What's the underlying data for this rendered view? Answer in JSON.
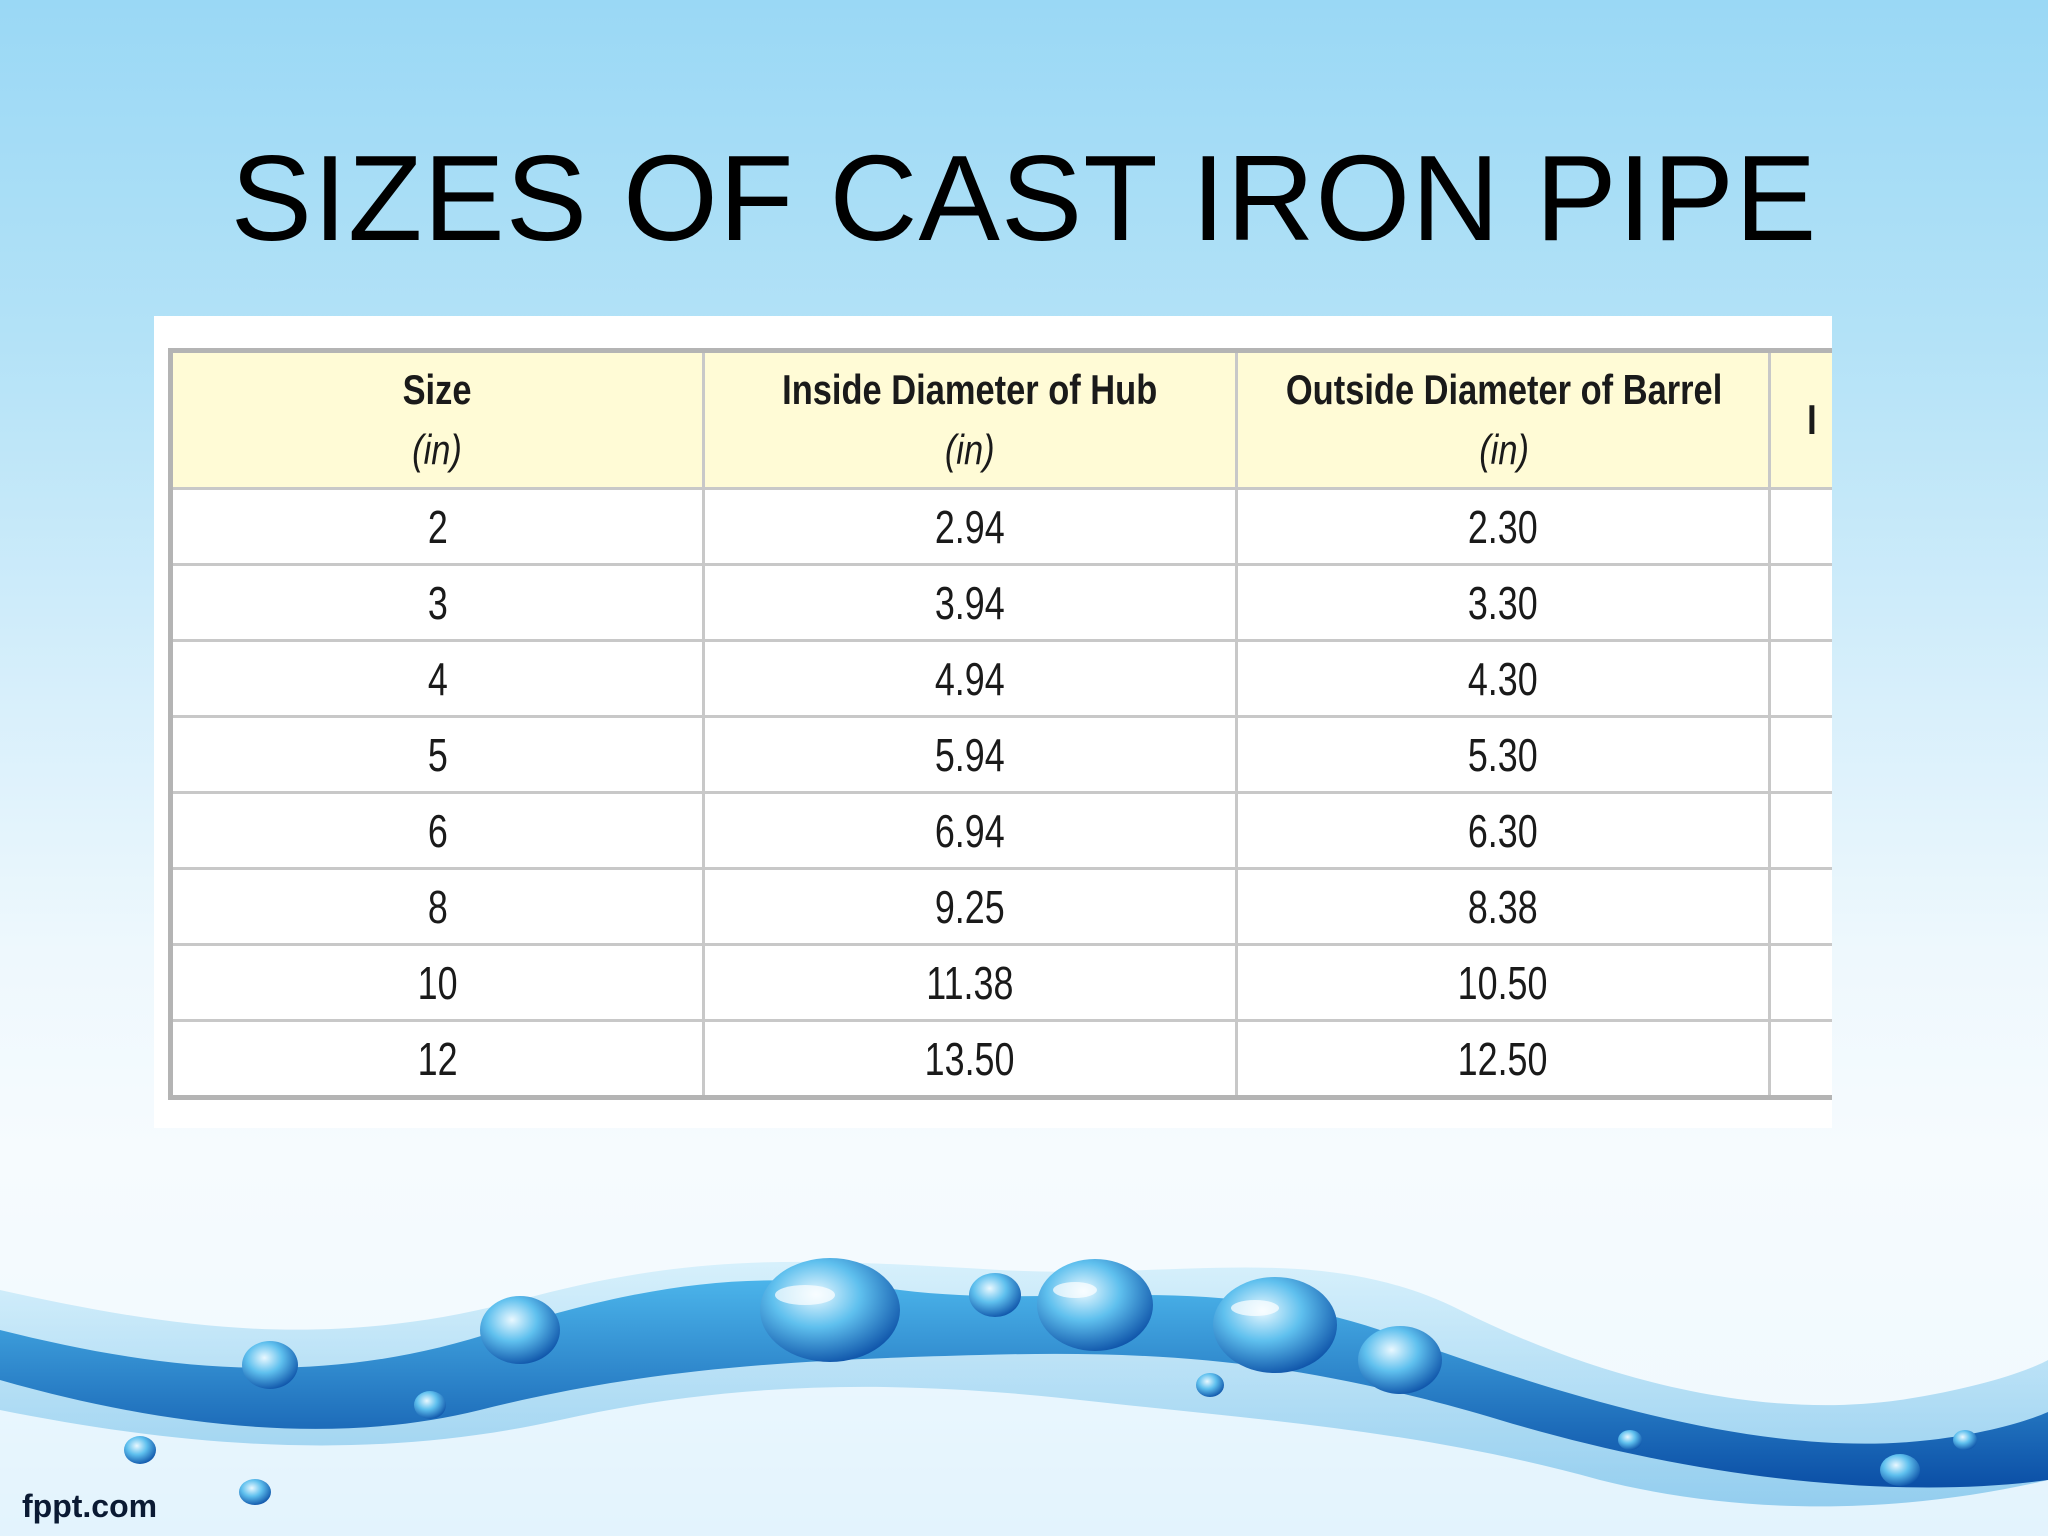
{
  "slide": {
    "title": "SIZES OF CAST IRON PIPE",
    "brand": "fppt.com"
  },
  "table": {
    "headers": [
      {
        "label": "Size",
        "unit": "(in)"
      },
      {
        "label": "Inside Diameter of Hub",
        "unit": "(in)"
      },
      {
        "label": "Outside Diameter of Barrel",
        "unit": "(in)"
      },
      {
        "label": "I",
        "unit": ""
      }
    ],
    "rows": [
      [
        "2",
        "2.94",
        "2.30",
        ""
      ],
      [
        "3",
        "3.94",
        "3.30",
        ""
      ],
      [
        "4",
        "4.94",
        "4.30",
        ""
      ],
      [
        "5",
        "5.94",
        "5.30",
        ""
      ],
      [
        "6",
        "6.94",
        "6.30",
        ""
      ],
      [
        "8",
        "9.25",
        "8.38",
        ""
      ],
      [
        "10",
        "11.38",
        "10.50",
        ""
      ],
      [
        "12",
        "13.50",
        "12.50",
        ""
      ]
    ]
  },
  "colors": {
    "header_bg": "#fffbd6",
    "wave_dark": "#0d5fb8",
    "wave_light": "#5ec3ef"
  }
}
